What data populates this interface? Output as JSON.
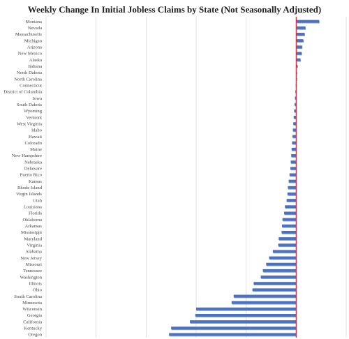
{
  "chart_data": {
    "type": "bar",
    "orientation": "horizontal",
    "title": "Weekly Change In Initial Jobless Claims by State (Not Seasonally Adjusted)",
    "xlabel": "",
    "ylabel": "",
    "grid": true,
    "legend": "none",
    "xlim": [
      -60,
      12
    ],
    "colors": {
      "bar": "#4A72C4",
      "bar_shadow": "#27467f",
      "zero_line": "#e0243a",
      "grid": "#d9d9d9"
    },
    "categories": [
      "Montana",
      "Nevada",
      "Massachusetts",
      "Michigan",
      "Arizona",
      "New Mexico",
      "Alaska",
      "Indiana",
      "North Dakota",
      "North Carolina",
      "Connecticut",
      "District of Columbia",
      "Iowa",
      "South Dakota",
      "Wyoming",
      "Vermont",
      "West Virginia",
      "Idaho",
      "Hawaii",
      "Colorado",
      "Maine",
      "New Hampshire",
      "Nebraska",
      "Delaware",
      "Puerto Rico",
      "Kansas",
      "Rhode Island",
      "Virgin Islands",
      "Utah",
      "Louisiana",
      "Florida",
      "Oklahoma",
      "Arkansas",
      "Mississippi",
      "Maryland",
      "Virginia",
      "Alabama",
      "New Jersey",
      "Missouri",
      "Tennessee",
      "Washington",
      "Illinois",
      "Ohio",
      "South Carolina",
      "Minnesota",
      "Wisconsin",
      "Georgia",
      "California",
      "Kentucky",
      "Oregon"
    ],
    "values": [
      5.5,
      2.2,
      2.0,
      1.7,
      1.4,
      1.3,
      1.0,
      0.3,
      0.1,
      0.1,
      -0.1,
      -0.2,
      -0.3,
      -0.4,
      -0.5,
      -0.6,
      -0.7,
      -0.8,
      -0.9,
      -1.0,
      -1.1,
      -1.2,
      -1.3,
      -1.4,
      -1.6,
      -1.8,
      -2.0,
      -2.1,
      -2.3,
      -2.7,
      -2.9,
      -3.3,
      -3.4,
      -3.5,
      -4.2,
      -4.3,
      -5.6,
      -6.5,
      -7.2,
      -8.0,
      -8.5,
      -10.2,
      -10.5,
      -15.0,
      -15.5,
      -24.0,
      -24.2,
      -25.5,
      -30.0,
      -30.5
    ]
  }
}
